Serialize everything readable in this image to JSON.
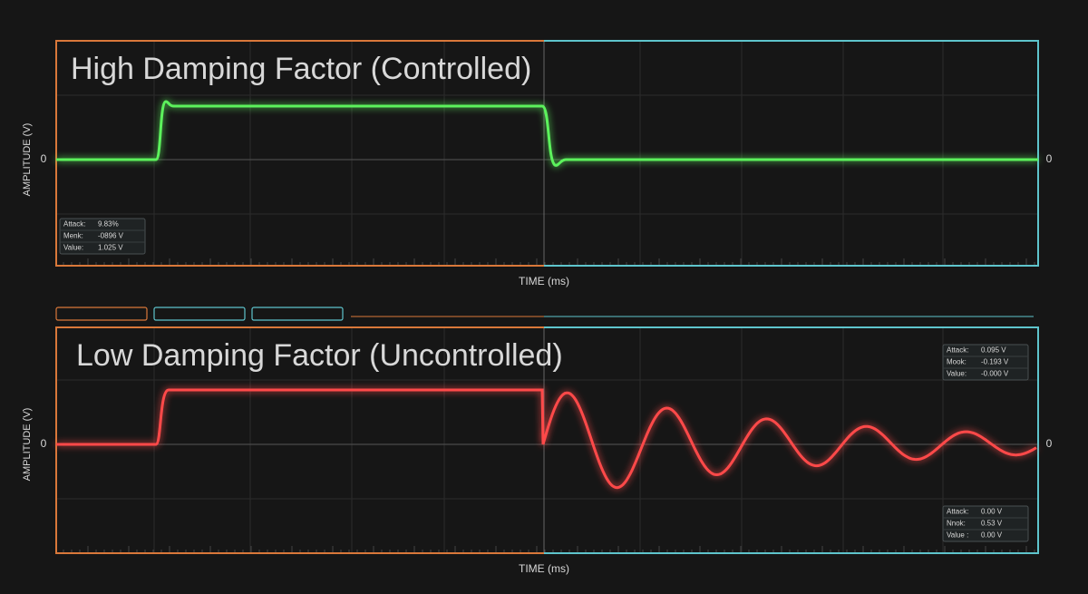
{
  "panels": [
    {
      "title": "High Damping Factor (Controlled)",
      "y_label": "AMPLITUDE (V)",
      "zero_left": "0",
      "zero_right": "0",
      "x_label": "TIME (ms)",
      "readouts": [
        {
          "rows": [
            [
              "Attack:",
              "9.83%"
            ],
            [
              "Menk:",
              "-0896 V"
            ],
            [
              "Value:",
              "1.025 V"
            ]
          ]
        }
      ]
    },
    {
      "title": "Low Damping Factor (Uncontrolled)",
      "y_label": "AMPLITUDE (V)",
      "zero_left": "0",
      "zero_right": "0",
      "x_label": "TIME (ms)",
      "readouts": [
        {
          "rows": [
            [
              "Attack:",
              "0.095 V"
            ],
            [
              "Mook:",
              "-0.193 V"
            ],
            [
              "Value:",
              "-0.000 V"
            ]
          ]
        },
        {
          "rows": [
            [
              "Attack:",
              "0.00 V"
            ],
            [
              "Nnok:",
              "0.53 V"
            ],
            [
              "Value :",
              "0.00 V"
            ]
          ]
        }
      ]
    }
  ]
}
